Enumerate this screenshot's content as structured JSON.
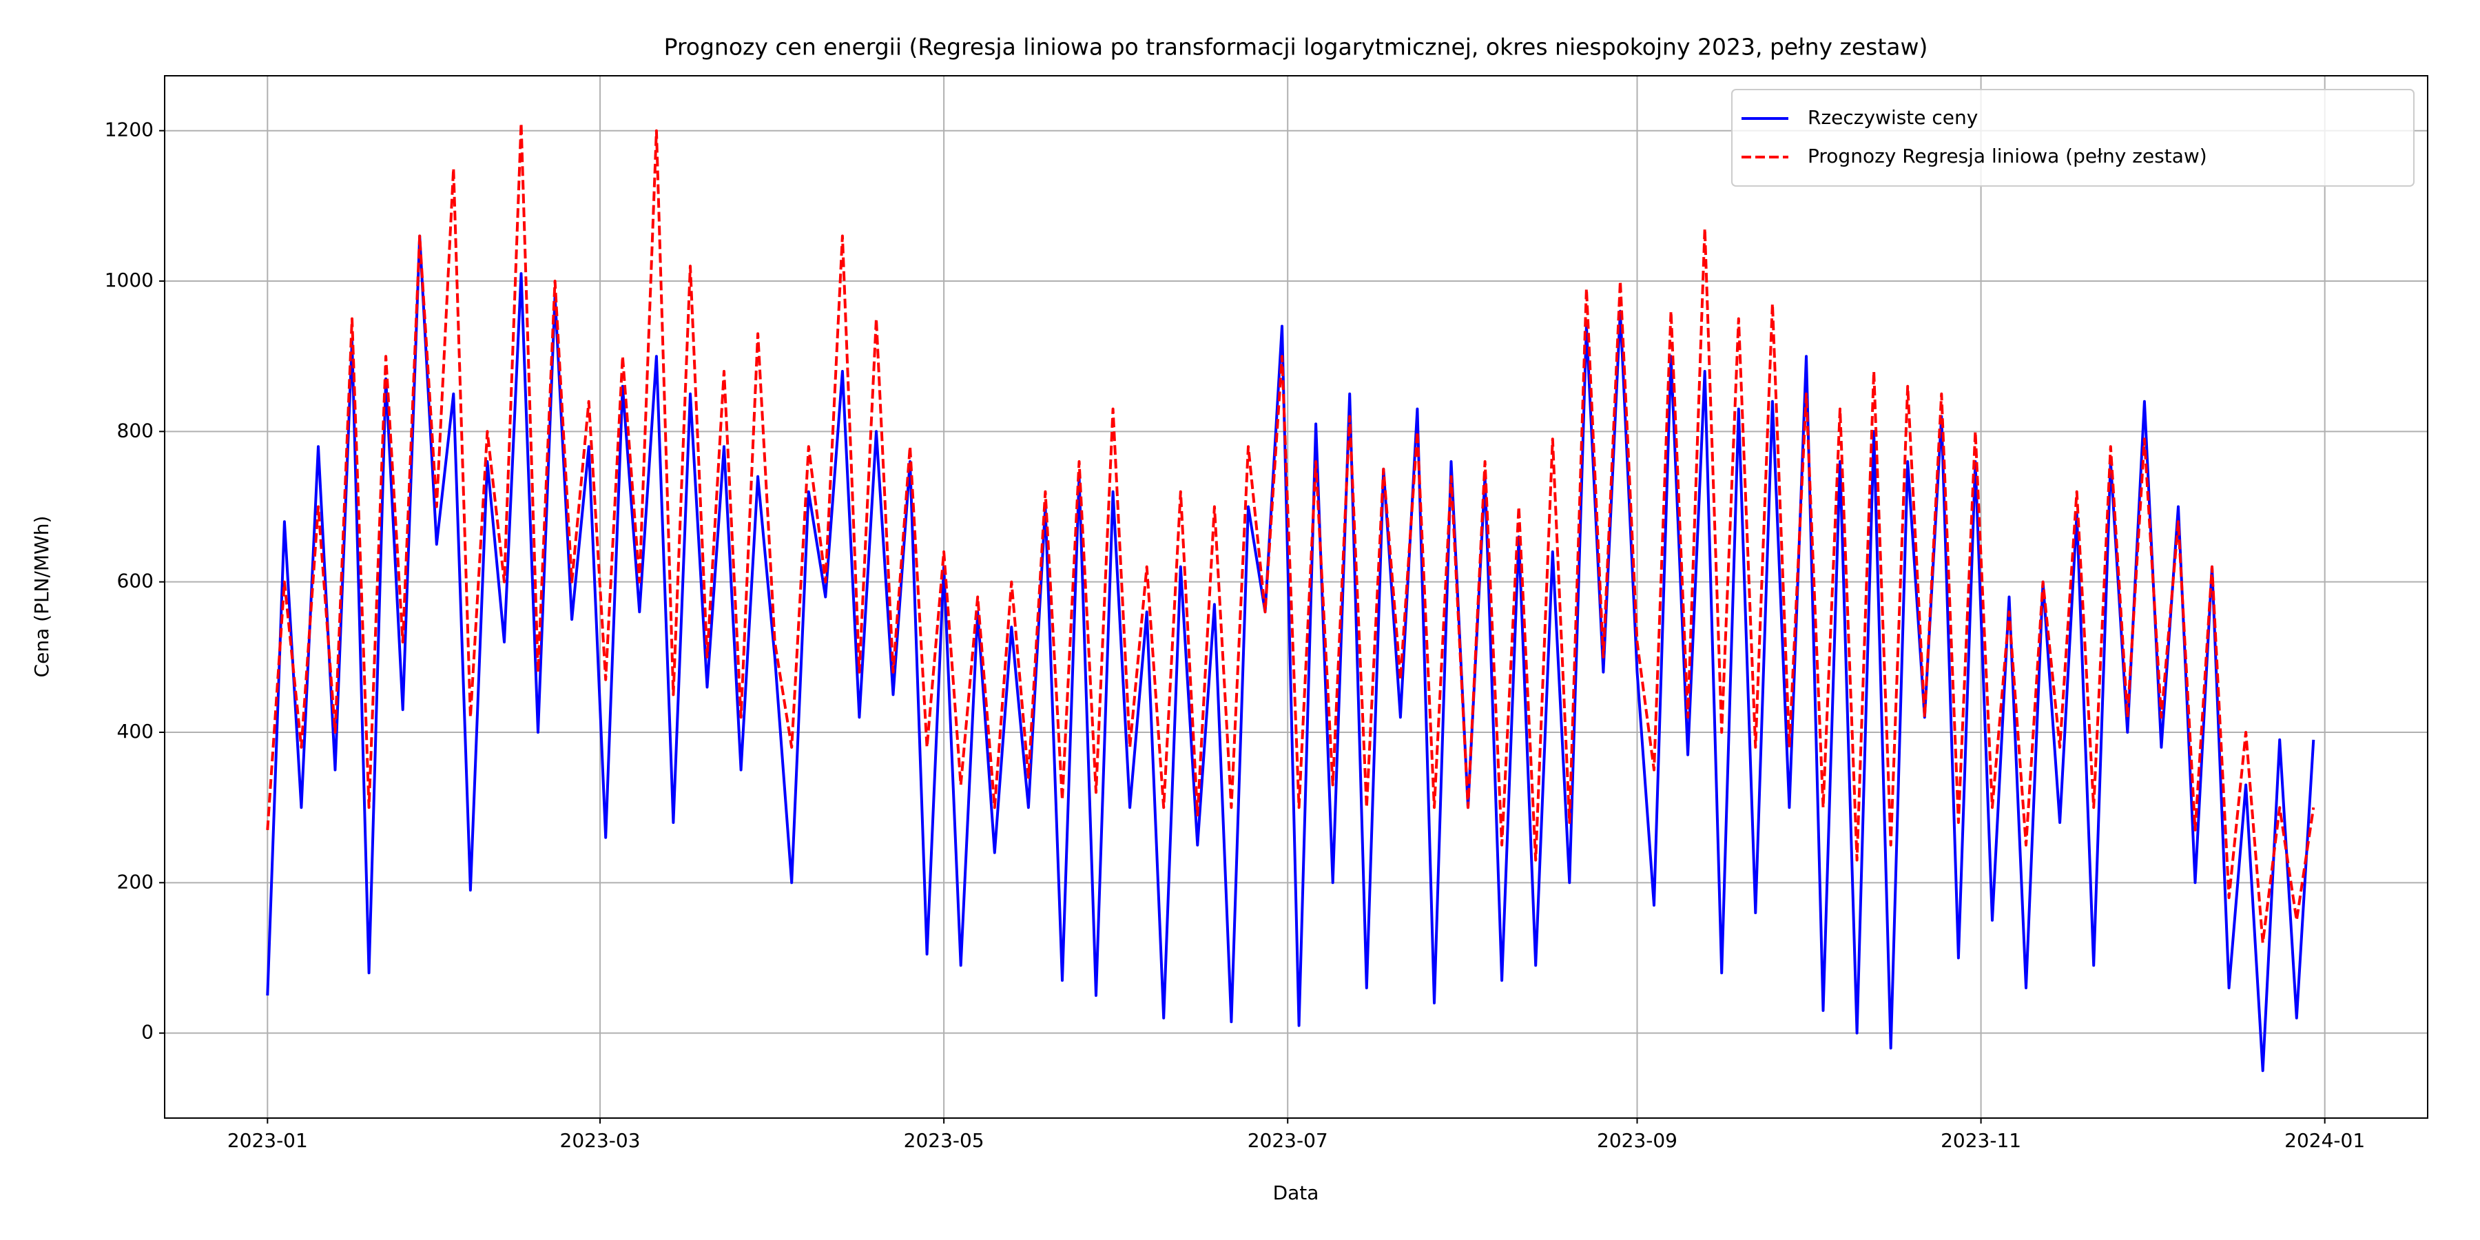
{
  "chart_data": {
    "type": "line",
    "title": "Prognozy cen energii (Regresja liniowa po transformacji logarytmicznej, okres niespokojny 2023, pełny zestaw)",
    "xlabel": "Data",
    "ylabel": "Cena (PLN/MWh)",
    "x": [
      0,
      3,
      6,
      9,
      12,
      15,
      18,
      21,
      24,
      27,
      30,
      33,
      36,
      39,
      42,
      45,
      48,
      51,
      54,
      57,
      60,
      63,
      66,
      69,
      72,
      75,
      78,
      81,
      84,
      87,
      90,
      93,
      96,
      99,
      102,
      105,
      108,
      111,
      114,
      117,
      120,
      123,
      126,
      129,
      132,
      135,
      138,
      141,
      144,
      147,
      150,
      153,
      156,
      159,
      162,
      165,
      168,
      171,
      174,
      177,
      180,
      183,
      186,
      189,
      192,
      195,
      198,
      201,
      204,
      207,
      210,
      213,
      216,
      219,
      222,
      225,
      228,
      231,
      234,
      237,
      240,
      243,
      246,
      249,
      252,
      255,
      258,
      261,
      264,
      267,
      270,
      273,
      276,
      279,
      282,
      285,
      288,
      291,
      294,
      297,
      300,
      303,
      306,
      309,
      312,
      315,
      318,
      321,
      324,
      327,
      330,
      333,
      336,
      339,
      342,
      345,
      348,
      351,
      354,
      357,
      360,
      363
    ],
    "series": [
      {
        "name": "Rzeczywiste ceny",
        "color": "#0000ff",
        "dash": "solid",
        "values": [
          50,
          680,
          300,
          780,
          350,
          920,
          80,
          870,
          430,
          1060,
          650,
          850,
          190,
          760,
          520,
          1010,
          400,
          980,
          550,
          780,
          260,
          860,
          560,
          900,
          280,
          850,
          460,
          780,
          350,
          740,
          500,
          200,
          720,
          580,
          880,
          420,
          800,
          450,
          760,
          105,
          620,
          90,
          560,
          240,
          540,
          300,
          700,
          70,
          740,
          50,
          720,
          300,
          560,
          20,
          620,
          250,
          570,
          15,
          700,
          560,
          940,
          10,
          810,
          200,
          850,
          60,
          750,
          420,
          830,
          40,
          760,
          300,
          740,
          70,
          660,
          90,
          640,
          200,
          940,
          480,
          960,
          480,
          170,
          900,
          370,
          880,
          80,
          830,
          160,
          840,
          300,
          900,
          30,
          760,
          0,
          800,
          -20,
          760,
          420,
          820,
          100,
          760,
          150,
          580,
          60,
          600,
          280,
          690,
          90,
          760,
          400,
          840,
          380,
          700,
          200,
          620,
          60,
          330,
          -50,
          390,
          20,
          390
        ]
      },
      {
        "name": "Prognozy Regresja liniowa (pełny zestaw)",
        "color": "#ff0000",
        "dash": "dashed",
        "values": [
          270,
          600,
          380,
          700,
          400,
          950,
          300,
          900,
          520,
          1060,
          700,
          1150,
          420,
          800,
          600,
          1210,
          480,
          1000,
          600,
          840,
          470,
          900,
          600,
          1200,
          450,
          1020,
          500,
          880,
          420,
          930,
          520,
          380,
          780,
          600,
          1060,
          480,
          950,
          480,
          780,
          380,
          640,
          330,
          580,
          300,
          600,
          340,
          720,
          310,
          760,
          320,
          830,
          380,
          620,
          300,
          720,
          290,
          700,
          300,
          780,
          560,
          900,
          300,
          760,
          330,
          820,
          300,
          750,
          470,
          800,
          300,
          740,
          300,
          760,
          250,
          700,
          230,
          790,
          280,
          990,
          500,
          1000,
          520,
          350,
          960,
          420,
          1070,
          400,
          950,
          380,
          970,
          380,
          850,
          300,
          830,
          230,
          880,
          250,
          860,
          420,
          850,
          280,
          800,
          300,
          560,
          250,
          600,
          380,
          720,
          300,
          780,
          420,
          790,
          420,
          680,
          270,
          620,
          180,
          400,
          120,
          300,
          150,
          300
        ]
      }
    ],
    "xlim": [
      -18.25,
      383.25
    ],
    "xticks": [
      {
        "value": 0,
        "label": "2023-01"
      },
      {
        "value": 59,
        "label": "2023-03"
      },
      {
        "value": 120,
        "label": "2023-05"
      },
      {
        "value": 181,
        "label": "2023-07"
      },
      {
        "value": 243,
        "label": "2023-09"
      },
      {
        "value": 304,
        "label": "2023-11"
      },
      {
        "value": 365,
        "label": "2024-01"
      }
    ],
    "ylim": [
      -113,
      1273
    ],
    "yticks": [
      0,
      200,
      400,
      600,
      800,
      1000,
      1200
    ],
    "grid": true,
    "legend": "upper right"
  }
}
